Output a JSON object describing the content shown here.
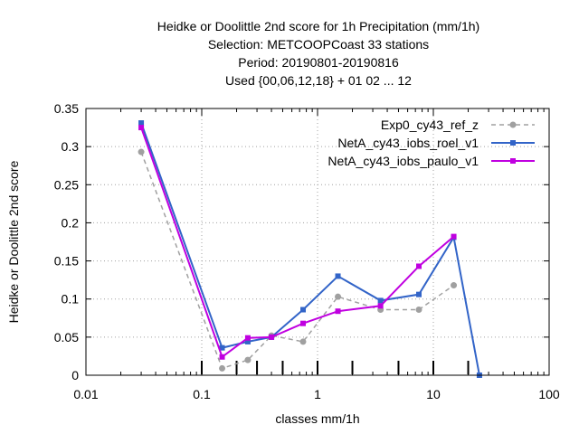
{
  "chart_data": {
    "type": "line",
    "title_lines": [
      "Heidke or Doolittle 2nd score  for 1h Precipitation (mm/1h)",
      "Selection: METCOOPCoast     33 stations",
      "Period: 20190801-20190816",
      "Used {00,06,12,18} + 01 02 ... 12"
    ],
    "xlabel": "classes mm/1h",
    "ylabel": "Heidke or Doolittle 2nd score",
    "x_scale": "log",
    "xlim": [
      0.01,
      100
    ],
    "ylim": [
      0,
      0.35
    ],
    "x_ticks": [
      {
        "value": 0.01,
        "label": "0.01"
      },
      {
        "value": 0.1,
        "label": "0.1"
      },
      {
        "value": 1,
        "label": "1"
      },
      {
        "value": 10,
        "label": "10"
      },
      {
        "value": 100,
        "label": "100"
      }
    ],
    "y_ticks": [
      {
        "value": 0,
        "label": "0"
      },
      {
        "value": 0.05,
        "label": "0.05"
      },
      {
        "value": 0.1,
        "label": "0.1"
      },
      {
        "value": 0.15,
        "label": "0.15"
      },
      {
        "value": 0.2,
        "label": "0.2"
      },
      {
        "value": 0.25,
        "label": "0.25"
      },
      {
        "value": 0.3,
        "label": "0.3"
      },
      {
        "value": 0.35,
        "label": "0.35"
      }
    ],
    "grid": true,
    "legend_position": "top-right",
    "class_markers_x": [
      0.1,
      0.2,
      0.3,
      0.5,
      1,
      2,
      5,
      10,
      20
    ],
    "series": [
      {
        "name": "Exp0_cy43_ref_z",
        "color": "#a0a0a0",
        "dashed": true,
        "x": [
          0.03,
          0.15,
          0.25,
          0.4,
          0.75,
          1.5,
          3.5,
          7.5,
          15
        ],
        "values": [
          0.293,
          0.009,
          0.02,
          0.052,
          0.044,
          0.103,
          0.086,
          0.086,
          0.118
        ]
      },
      {
        "name": "NetA_cy43_iobs_roel_v1",
        "color": "#3264c8",
        "dashed": false,
        "x": [
          0.03,
          0.15,
          0.25,
          0.4,
          0.75,
          1.5,
          3.5,
          7.5,
          15,
          25
        ],
        "values": [
          0.331,
          0.036,
          0.044,
          0.05,
          0.086,
          0.13,
          0.098,
          0.106,
          0.181,
          0.0
        ]
      },
      {
        "name": "NetA_cy43_iobs_paulo_v1",
        "color": "#c000e0",
        "dashed": false,
        "x": [
          0.03,
          0.15,
          0.25,
          0.4,
          0.75,
          1.5,
          3.5,
          7.5,
          15
        ],
        "values": [
          0.325,
          0.024,
          0.049,
          0.05,
          0.068,
          0.084,
          0.091,
          0.143,
          0.182
        ]
      }
    ]
  }
}
